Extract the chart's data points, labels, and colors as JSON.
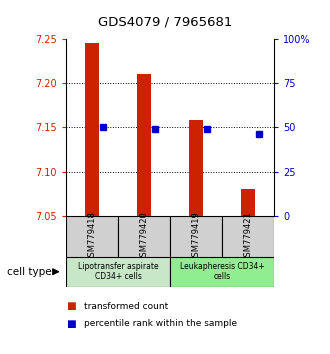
{
  "title": "GDS4079 / 7965681",
  "samples": [
    "GSM779418",
    "GSM779420",
    "GSM779419",
    "GSM779421"
  ],
  "red_values": [
    7.245,
    7.21,
    7.158,
    7.08
  ],
  "blue_values": [
    7.15,
    7.148,
    7.148,
    7.143
  ],
  "y_min": 7.05,
  "y_max": 7.25,
  "y_ticks_left": [
    7.05,
    7.1,
    7.15,
    7.2,
    7.25
  ],
  "y_ticks_right": [
    0,
    25,
    50,
    75,
    100
  ],
  "y_ticks_right_labels": [
    "0",
    "25",
    "50",
    "75",
    "100%"
  ],
  "dotted_lines": [
    7.1,
    7.15,
    7.2
  ],
  "groups": [
    {
      "label": "Lipotransfer aspirate\nCD34+ cells",
      "samples": [
        0,
        1
      ],
      "color": "#c8e6c8"
    },
    {
      "label": "Leukapheresis CD34+\ncells",
      "samples": [
        2,
        3
      ],
      "color": "#90ee90"
    }
  ],
  "bar_color": "#cc2200",
  "dot_color": "#0000cc",
  "left_axis_color": "#cc2200",
  "right_axis_color": "#0000cc",
  "legend_red_label": "transformed count",
  "legend_blue_label": "percentile rank within the sample",
  "cell_type_label": "cell type",
  "sample_box_color": "#d0d0d0"
}
